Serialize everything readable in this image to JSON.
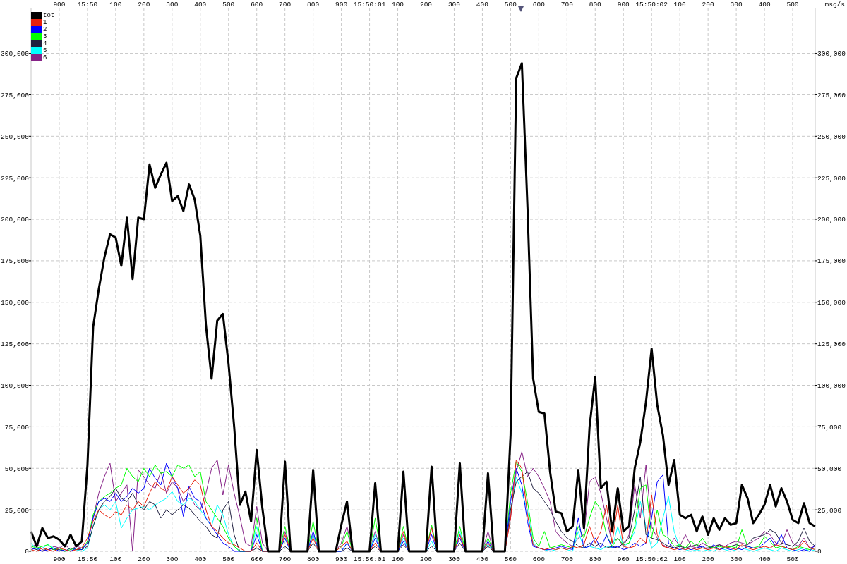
{
  "chart_data": {
    "type": "line",
    "categories": [
      null,
      null,
      null,
      null,
      null,
      "900",
      null,
      null,
      null,
      null,
      "15:50",
      null,
      null,
      null,
      null,
      "100",
      null,
      null,
      null,
      null,
      "200",
      null,
      null,
      null,
      null,
      "300",
      null,
      null,
      null,
      null,
      "400",
      null,
      null,
      null,
      null,
      "500",
      null,
      null,
      null,
      null,
      "600",
      null,
      null,
      null,
      null,
      "700",
      null,
      null,
      null,
      null,
      "800",
      null,
      null,
      null,
      null,
      "900",
      null,
      null,
      null,
      null,
      "15:50:01",
      null,
      null,
      null,
      null,
      "100",
      null,
      null,
      null,
      null,
      "200",
      null,
      null,
      null,
      null,
      "300",
      null,
      null,
      null,
      null,
      "400",
      null,
      null,
      null,
      null,
      "500",
      null,
      null,
      null,
      null,
      "600",
      null,
      null,
      null,
      null,
      "700",
      null,
      null,
      null,
      null,
      "800",
      null,
      null,
      null,
      null,
      "900",
      null,
      null,
      null,
      null,
      "15:50:02",
      null,
      null,
      null,
      null,
      "100",
      null,
      null,
      null,
      null,
      "200",
      null,
      null,
      null,
      null,
      "300",
      null,
      null,
      null,
      null,
      "400",
      null,
      null,
      null,
      null,
      "500",
      null,
      null,
      null,
      null
    ],
    "series": [
      {
        "name": "tot",
        "color": "#000000",
        "values": [
          12000,
          3000,
          14000,
          8000,
          9000,
          7000,
          3000,
          10000,
          3000,
          6000,
          52000,
          135000,
          158000,
          177000,
          191000,
          189000,
          172000,
          201000,
          164000,
          201000,
          200000,
          233000,
          219000,
          227000,
          234000,
          211000,
          214000,
          205000,
          221000,
          212000,
          190000,
          136000,
          104000,
          139000,
          143000,
          113000,
          75000,
          28000,
          36000,
          18000,
          61000,
          26000,
          0,
          0,
          0,
          54000,
          0,
          0,
          0,
          0,
          49000,
          0,
          0,
          0,
          0,
          16000,
          30000,
          0,
          0,
          0,
          0,
          41000,
          0,
          0,
          0,
          0,
          48000,
          0,
          0,
          0,
          0,
          51000,
          0,
          0,
          0,
          0,
          53000,
          0,
          0,
          0,
          0,
          47000,
          0,
          0,
          0,
          70000,
          285000,
          294000,
          207000,
          104000,
          84000,
          83000,
          48000,
          24000,
          23000,
          12000,
          15000,
          49000,
          14000,
          75000,
          105000,
          38000,
          42000,
          12000,
          38000,
          12000,
          15000,
          50000,
          66000,
          90000,
          122000,
          88000,
          70000,
          40000,
          55000,
          22000,
          20000,
          22000,
          12000,
          21000,
          10000,
          20000,
          13000,
          20000,
          16000,
          17000,
          40000,
          32000,
          17000,
          22000,
          28000,
          40000,
          27000,
          38000,
          30000,
          19000,
          17000,
          29000,
          17000,
          15000
        ]
      },
      {
        "name": "1",
        "color": "#e8200c",
        "values": [
          1000,
          0,
          2000,
          1000,
          0,
          2000,
          1000,
          0,
          1000,
          2000,
          8000,
          18000,
          25000,
          22000,
          20000,
          24000,
          22000,
          28000,
          25000,
          30000,
          27000,
          35000,
          42000,
          38000,
          36000,
          45000,
          40000,
          35000,
          38000,
          43000,
          40000,
          25000,
          15000,
          12000,
          8000,
          5000,
          4000,
          2000,
          0,
          0,
          5000,
          0,
          0,
          0,
          0,
          10000,
          0,
          0,
          0,
          0,
          8000,
          0,
          0,
          0,
          0,
          3000,
          6000,
          0,
          0,
          0,
          0,
          5000,
          0,
          0,
          0,
          0,
          12000,
          0,
          0,
          0,
          0,
          14000,
          0,
          0,
          0,
          0,
          10000,
          0,
          0,
          0,
          0,
          5000,
          0,
          0,
          0,
          20000,
          55000,
          50000,
          22000,
          4000,
          2000,
          1000,
          2000,
          1000,
          2000,
          1000,
          3000,
          2000,
          4000,
          15000,
          5000,
          12000,
          28000,
          5000,
          28000,
          3000,
          2000,
          3000,
          8000,
          5000,
          34000,
          10000,
          3000,
          2000,
          1000,
          2000,
          1000,
          2000,
          1000,
          2000,
          1000,
          2000,
          1000,
          3000,
          2000,
          1000,
          4000,
          2000,
          1000,
          2000,
          3000,
          2000,
          4000,
          3000,
          2000,
          1000,
          2000,
          6000,
          2000,
          1000
        ]
      },
      {
        "name": "2",
        "color": "#0000ff",
        "values": [
          1000,
          2000,
          0,
          1000,
          2000,
          0,
          1000,
          0,
          2000,
          1000,
          5000,
          20000,
          30000,
          32000,
          30000,
          35000,
          30000,
          33000,
          38000,
          35000,
          38000,
          50000,
          44000,
          40000,
          53000,
          45000,
          38000,
          21000,
          39000,
          32000,
          30000,
          20000,
          15000,
          10000,
          5000,
          3000,
          0,
          0,
          0,
          0,
          10000,
          0,
          0,
          0,
          0,
          8000,
          0,
          0,
          0,
          0,
          12000,
          0,
          0,
          0,
          0,
          0,
          5000,
          0,
          0,
          0,
          0,
          8000,
          0,
          0,
          0,
          0,
          6000,
          0,
          0,
          0,
          0,
          10000,
          0,
          0,
          0,
          0,
          8000,
          0,
          0,
          0,
          0,
          6000,
          0,
          0,
          0,
          30000,
          50000,
          40000,
          18000,
          3000,
          2000,
          1000,
          1000,
          2000,
          3000,
          2000,
          1000,
          20000,
          2000,
          3000,
          8000,
          2000,
          10000,
          2000,
          3000,
          1000,
          2000,
          5000,
          3000,
          5000,
          20000,
          42000,
          46000,
          5000,
          2000,
          1000,
          2000,
          1000,
          2000,
          3000,
          1000,
          4000,
          1000,
          2000,
          1000,
          2000,
          1000,
          3000,
          2000,
          2000,
          5000,
          8000,
          3000,
          10000,
          2000,
          1000,
          0,
          1000,
          0,
          4000
        ]
      },
      {
        "name": "3",
        "color": "#00ff00",
        "values": [
          3000,
          2000,
          3000,
          4000,
          1000,
          2000,
          0,
          1000,
          2000,
          1000,
          6000,
          22000,
          30000,
          33000,
          35000,
          38000,
          40000,
          50000,
          45000,
          42000,
          50000,
          45000,
          52000,
          47000,
          48000,
          45000,
          52000,
          50000,
          52000,
          45000,
          48000,
          30000,
          25000,
          20000,
          15000,
          8000,
          3000,
          0,
          0,
          0,
          20000,
          0,
          0,
          0,
          0,
          15000,
          0,
          0,
          0,
          0,
          18000,
          0,
          0,
          0,
          0,
          3000,
          12000,
          0,
          0,
          0,
          0,
          20000,
          0,
          0,
          0,
          0,
          15000,
          0,
          0,
          0,
          0,
          16000,
          0,
          0,
          0,
          0,
          15000,
          0,
          0,
          0,
          0,
          8000,
          0,
          0,
          0,
          35000,
          54000,
          48000,
          30000,
          8000,
          3000,
          12000,
          2000,
          3000,
          4000,
          3000,
          2000,
          15000,
          8000,
          20000,
          30000,
          25000,
          10000,
          3000,
          8000,
          4000,
          5000,
          15000,
          38000,
          40000,
          8000,
          25000,
          10000,
          8000,
          3000,
          4000,
          2000,
          6000,
          3000,
          8000,
          3000,
          2000,
          3000,
          2000,
          3000,
          2000,
          13000,
          3000,
          2000,
          3000,
          9000,
          6000,
          2000,
          3000,
          2000,
          1000,
          3000,
          2000,
          1000,
          2000
        ]
      },
      {
        "name": "4",
        "color": "#1f1f3f",
        "values": [
          2000,
          1000,
          0,
          2000,
          1000,
          1000,
          0,
          2000,
          1000,
          1000,
          3000,
          15000,
          25000,
          30000,
          33000,
          38000,
          32000,
          30000,
          35000,
          28000,
          25000,
          30000,
          28000,
          20000,
          25000,
          22000,
          25000,
          28000,
          26000,
          22000,
          18000,
          15000,
          10000,
          8000,
          25000,
          30000,
          10000,
          0,
          0,
          0,
          2000,
          0,
          0,
          0,
          0,
          3000,
          0,
          0,
          0,
          0,
          5000,
          0,
          0,
          0,
          0,
          0,
          2000,
          0,
          0,
          0,
          0,
          3000,
          0,
          0,
          0,
          0,
          4000,
          0,
          0,
          0,
          0,
          3000,
          0,
          0,
          0,
          0,
          5000,
          0,
          0,
          0,
          0,
          3000,
          0,
          0,
          0,
          25000,
          42000,
          45000,
          48000,
          38000,
          35000,
          30000,
          25000,
          18000,
          12000,
          8000,
          6000,
          3000,
          2000,
          5000,
          3000,
          5000,
          2000,
          3000,
          2000,
          5000,
          8000,
          25000,
          45000,
          10000,
          8000,
          7000,
          5000,
          3000,
          2000,
          3000,
          2000,
          3000,
          4000,
          2000,
          2000,
          3000,
          4000,
          2000,
          3000,
          4000,
          3000,
          4000,
          8000,
          9000,
          10000,
          13000,
          11000,
          5000,
          4000,
          3000,
          6000,
          14000,
          6000,
          3000
        ]
      },
      {
        "name": "5",
        "color": "#00ffff",
        "values": [
          5000,
          1000,
          2000,
          4000,
          2000,
          1000,
          0,
          2000,
          1000,
          0,
          2000,
          15000,
          25000,
          28000,
          25000,
          30000,
          14000,
          20000,
          25000,
          26000,
          27000,
          25000,
          28000,
          30000,
          32000,
          36000,
          30000,
          28000,
          32000,
          30000,
          25000,
          20000,
          15000,
          28000,
          22000,
          10000,
          3000,
          0,
          0,
          0,
          15000,
          0,
          0,
          0,
          0,
          8000,
          0,
          0,
          0,
          0,
          10000,
          0,
          0,
          0,
          0,
          0,
          5000,
          0,
          0,
          0,
          0,
          10000,
          0,
          0,
          0,
          0,
          8000,
          0,
          0,
          0,
          0,
          6000,
          0,
          0,
          0,
          0,
          12000,
          0,
          0,
          0,
          0,
          4000,
          0,
          0,
          0,
          25000,
          45000,
          35000,
          25000,
          5000,
          2000,
          1000,
          0,
          1000,
          2000,
          1000,
          0,
          12000,
          2000,
          3000,
          2000,
          1000,
          3000,
          2000,
          15000,
          3000,
          5000,
          12000,
          30000,
          15000,
          2000,
          5000,
          20000,
          33000,
          12000,
          2000,
          1000,
          0,
          1000,
          0,
          1000,
          0,
          2000,
          1000,
          0,
          1000,
          2000,
          1000,
          0,
          1000,
          2000,
          1000,
          0,
          2000,
          1000,
          0,
          1000,
          2000,
          0,
          1000
        ]
      },
      {
        "name": "6",
        "color": "#862287",
        "values": [
          2000,
          5000,
          1000,
          0,
          3000,
          2000,
          4000,
          1000,
          3000,
          2000,
          5000,
          20000,
          35000,
          45000,
          53000,
          30000,
          35000,
          40000,
          0,
          49000,
          45000,
          40000,
          38000,
          48000,
          35000,
          42000,
          38000,
          30000,
          35000,
          28000,
          25000,
          35000,
          50000,
          55000,
          34000,
          52000,
          35000,
          21000,
          5000,
          3000,
          27000,
          5000,
          0,
          0,
          0,
          12000,
          0,
          0,
          0,
          0,
          10000,
          0,
          0,
          0,
          0,
          5000,
          15000,
          0,
          0,
          0,
          0,
          12000,
          0,
          0,
          0,
          0,
          10000,
          0,
          0,
          0,
          0,
          15000,
          0,
          0,
          0,
          0,
          10000,
          0,
          0,
          0,
          0,
          12000,
          0,
          0,
          0,
          20000,
          48000,
          60000,
          45000,
          50000,
          45000,
          38000,
          30000,
          12000,
          8000,
          5000,
          3000,
          8000,
          10000,
          42000,
          45000,
          35000,
          20000,
          5000,
          8000,
          3000,
          10000,
          40000,
          20000,
          52000,
          15000,
          8000,
          4000,
          2000,
          8000,
          3000,
          10000,
          3000,
          2000,
          5000,
          3000,
          2000,
          4000,
          3000,
          5000,
          6000,
          5000,
          4000,
          6000,
          8000,
          12000,
          10000,
          5000,
          4000,
          13000,
          5000,
          3000,
          8000,
          2000,
          3000
        ]
      }
    ],
    "ylim": [
      0,
      327000
    ],
    "yticks": [
      0,
      {
        "value": 25000,
        "label": "25,000"
      },
      {
        "value": 50000,
        "label": "50,000"
      },
      {
        "value": 75000,
        "label": "75,000"
      },
      {
        "value": 100000,
        "label": "100,000"
      },
      {
        "value": 125000,
        "label": "125,000"
      },
      {
        "value": 150000,
        "label": "150,000"
      },
      {
        "value": 175000,
        "label": "175,000"
      },
      {
        "value": 200000,
        "label": "200,000"
      },
      {
        "value": 225000,
        "label": "225,000"
      },
      {
        "value": 250000,
        "label": "250,000"
      },
      {
        "value": 275000,
        "label": "275,000"
      },
      {
        "value": 300000,
        "label": "300,000"
      }
    ],
    "y2lim": [
      0,
      327000
    ],
    "y2ticks": [
      0,
      {
        "value": 25000,
        "label": "25,000"
      },
      {
        "value": 50000,
        "label": "50,000"
      },
      {
        "value": 75000,
        "label": "75,000"
      },
      {
        "value": 100000,
        "label": "100,000"
      },
      {
        "value": 125000,
        "label": "125,000"
      },
      {
        "value": 150000,
        "label": "150,000"
      },
      {
        "value": 175000,
        "label": "175,000"
      },
      {
        "value": 200000,
        "label": "200,000"
      },
      {
        "value": 225000,
        "label": "225,000"
      },
      {
        "value": 250000,
        "label": "250,000"
      },
      {
        "value": 275000,
        "label": "275,000"
      },
      {
        "value": 300000,
        "label": "300,000"
      }
    ],
    "y2label": "msg/s",
    "grid": true,
    "legend": "top left",
    "line_style": "solid"
  }
}
